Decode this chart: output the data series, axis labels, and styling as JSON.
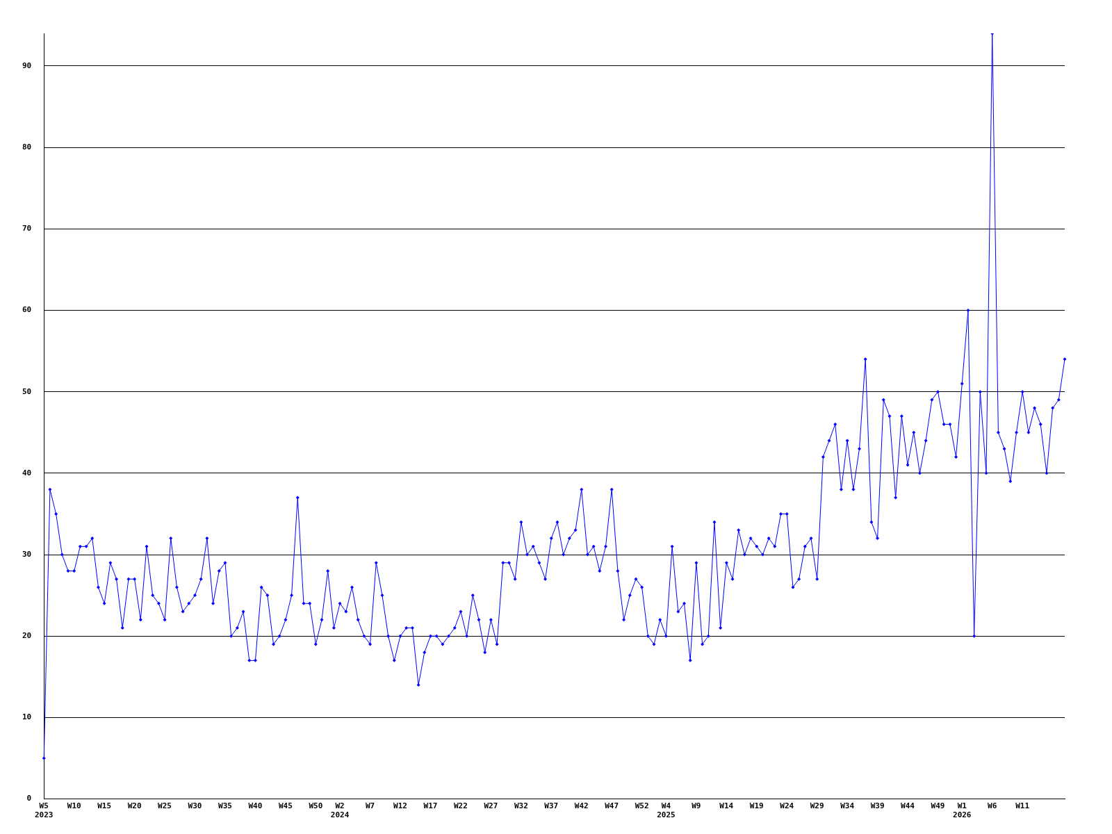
{
  "chart_data": {
    "type": "line",
    "categories": [
      "W5 2023",
      null,
      null,
      null,
      null,
      "W10",
      null,
      null,
      null,
      null,
      "W15",
      null,
      null,
      null,
      null,
      "W20",
      null,
      null,
      null,
      null,
      "W25",
      null,
      null,
      null,
      null,
      "W30",
      null,
      null,
      null,
      null,
      "W35",
      null,
      null,
      null,
      null,
      "W40",
      null,
      null,
      null,
      null,
      "W45",
      null,
      null,
      null,
      null,
      "W50",
      null,
      null,
      null,
      "W2 2024",
      null,
      null,
      null,
      null,
      "W7",
      null,
      null,
      null,
      null,
      "W12",
      null,
      null,
      null,
      null,
      "W17",
      null,
      null,
      null,
      null,
      "W22",
      null,
      null,
      null,
      null,
      "W27",
      null,
      null,
      null,
      null,
      "W32",
      null,
      null,
      null,
      null,
      "W37",
      null,
      null,
      null,
      null,
      "W42",
      null,
      null,
      null,
      null,
      "W47",
      null,
      null,
      null,
      null,
      "W52",
      null,
      null,
      null,
      "W4 2025",
      null,
      null,
      null,
      null,
      "W9",
      null,
      null,
      null,
      null,
      "W14",
      null,
      null,
      null,
      null,
      "W19",
      null,
      null,
      null,
      null,
      "W24",
      null,
      null,
      null,
      null,
      "W29",
      null,
      null,
      null,
      null,
      "W34",
      null,
      null,
      null,
      null,
      "W39",
      null,
      null,
      null,
      null,
      "W44",
      null,
      null,
      null,
      null,
      "W49",
      null,
      null,
      null,
      "W1 2026",
      null,
      null,
      null,
      null,
      "W6",
      null,
      null,
      null,
      null,
      "W11",
      null,
      null,
      null,
      null,
      null,
      null,
      null
    ],
    "series": [
      {
        "color": "#0000ff",
        "values": [
          5,
          38,
          35,
          30,
          28,
          28,
          31,
          31,
          32,
          26,
          24,
          29,
          27,
          21,
          27,
          27,
          22,
          31,
          25,
          24,
          22,
          32,
          26,
          23,
          24,
          25,
          27,
          32,
          24,
          28,
          29,
          20,
          21,
          23,
          17,
          17,
          26,
          25,
          19,
          20,
          22,
          25,
          37,
          24,
          24,
          19,
          22,
          28,
          21,
          24,
          23,
          26,
          22,
          20,
          19,
          29,
          25,
          20,
          17,
          20,
          21,
          21,
          14,
          18,
          20,
          20,
          19,
          20,
          21,
          23,
          20,
          25,
          22,
          18,
          22,
          19,
          29,
          29,
          27,
          34,
          30,
          31,
          29,
          27,
          32,
          34,
          30,
          32,
          33,
          38,
          30,
          31,
          28,
          31,
          38,
          28,
          22,
          25,
          27,
          26,
          20,
          19,
          22,
          20,
          31,
          23,
          24,
          17,
          29,
          19,
          20,
          34,
          21,
          29,
          27,
          33,
          30,
          32,
          31,
          30,
          32,
          31,
          35,
          35,
          26,
          27,
          31,
          32,
          27,
          42,
          44,
          46,
          38,
          44,
          38,
          43,
          54,
          34,
          32,
          49,
          47,
          37,
          47,
          41,
          45,
          40,
          44,
          49,
          50,
          46,
          46,
          42,
          51,
          60,
          20,
          50,
          40,
          94,
          45,
          43,
          39,
          45,
          50,
          45,
          48,
          46,
          40,
          48,
          49,
          54
        ]
      }
    ],
    "ylim": [
      0,
      94
    ],
    "yticks": [
      0,
      10,
      20,
      30,
      40,
      50,
      60,
      70,
      80,
      90
    ],
    "grid": "y",
    "legend": false,
    "marker": "diamond",
    "line_style": "solid"
  }
}
